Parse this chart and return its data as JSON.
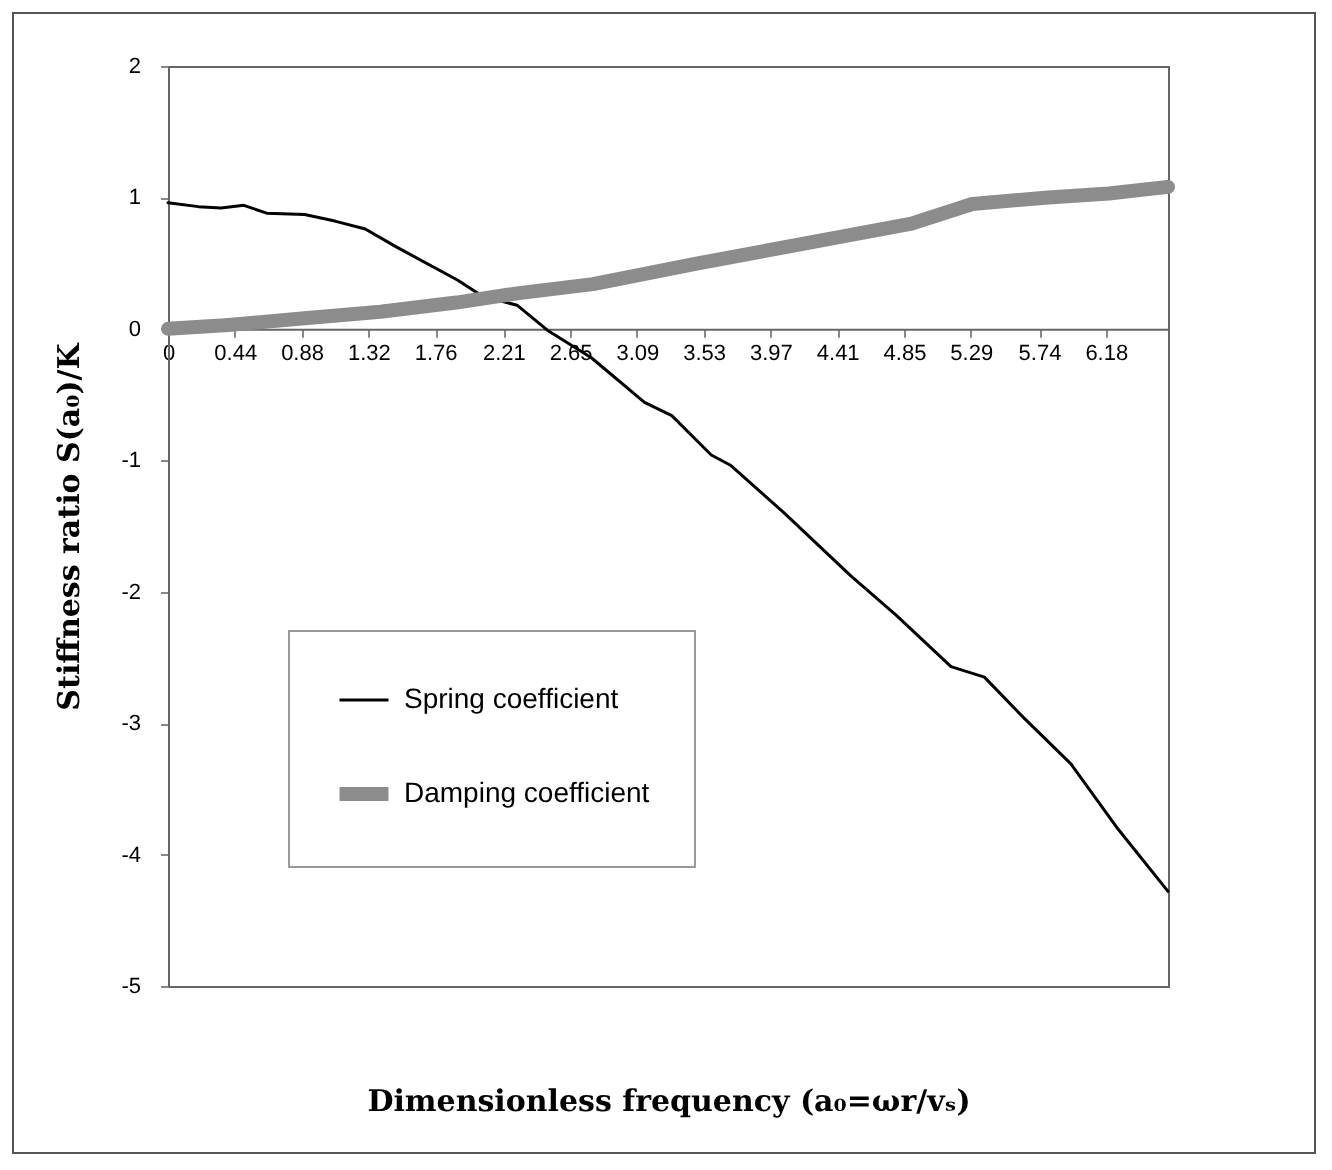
{
  "chart_data": {
    "type": "line",
    "xlabel": "Dimensionless frequency (a₀=ωr/vₛ)",
    "ylabel": "Stiffness ratio S(a₀)/K",
    "xlim": [
      0,
      6.59
    ],
    "xticks": [
      0,
      0.44,
      0.88,
      1.32,
      1.76,
      2.21,
      2.65,
      3.09,
      3.53,
      3.97,
      4.41,
      4.85,
      5.29,
      5.74,
      6.18
    ],
    "ylim": [
      -5,
      2
    ],
    "yticks": [
      -5,
      -4,
      -3,
      -2,
      -1,
      0,
      1,
      2
    ],
    "grid": false,
    "legend": "bottom left",
    "marker": "none",
    "line_style": "solid",
    "series": [
      {
        "name": "Spring coefficient",
        "color": "#000000",
        "x": [
          0,
          0.2,
          0.35,
          0.5,
          0.65,
          0.9,
          1.1,
          1.3,
          1.51,
          1.91,
          2.07,
          2.3,
          2.5,
          2.79,
          3.14,
          3.32,
          3.58,
          3.71,
          4.06,
          4.5,
          4.8,
          5.16,
          5.38,
          5.64,
          5.95,
          6.25,
          6.59
        ],
        "values": [
          0.96,
          0.93,
          0.92,
          0.94,
          0.88,
          0.87,
          0.82,
          0.76,
          0.62,
          0.37,
          0.25,
          0.18,
          -0.01,
          -0.22,
          -0.56,
          -0.66,
          -0.96,
          -1.04,
          -1.4,
          -1.88,
          -2.18,
          -2.57,
          -2.65,
          -2.96,
          -3.31,
          -3.79,
          -4.28
        ]
      },
      {
        "name": "Damping coefficient",
        "color": "#8c8c8c",
        "x": [
          0,
          0.4,
          0.9,
          1.4,
          1.9,
          2.3,
          2.8,
          3.5,
          4.2,
          4.9,
          5.3,
          5.8,
          6.2,
          6.59
        ],
        "values": [
          0,
          0.03,
          0.08,
          0.13,
          0.2,
          0.27,
          0.34,
          0.5,
          0.65,
          0.8,
          0.95,
          1.0,
          1.03,
          1.08
        ]
      }
    ]
  }
}
